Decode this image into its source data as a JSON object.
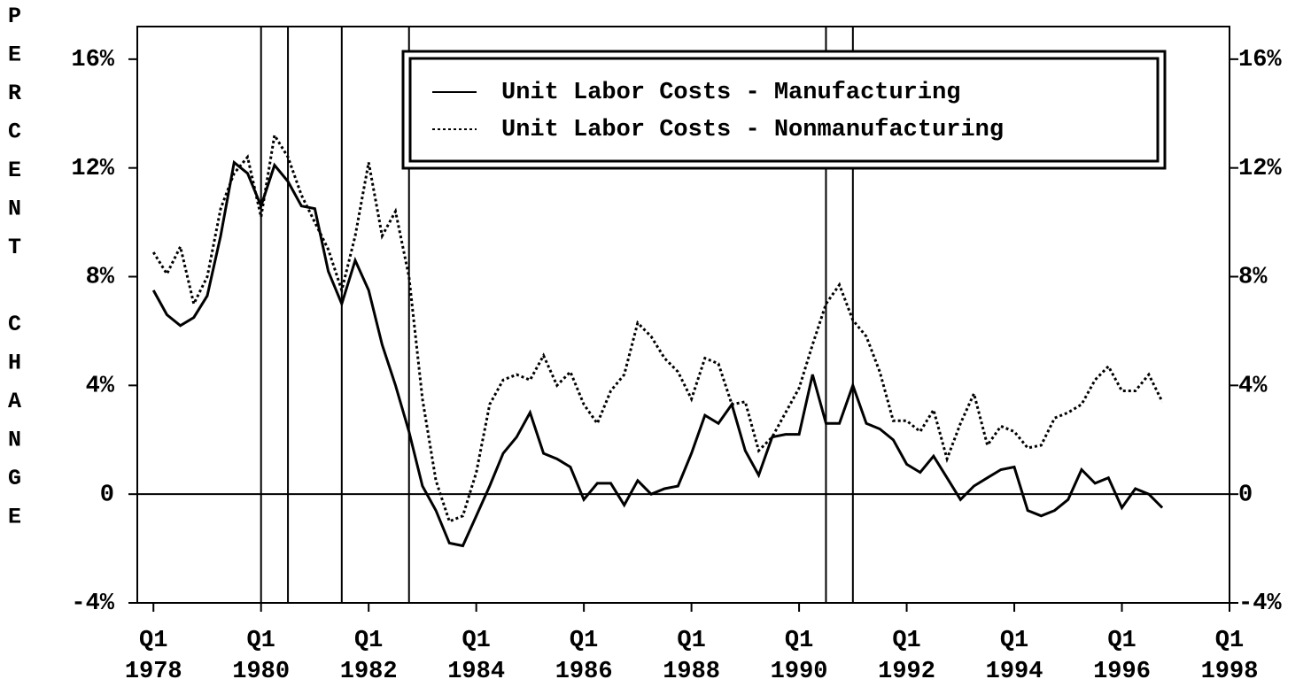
{
  "chart_data": {
    "type": "line",
    "y_label": "PERCENT CHANGE",
    "x": [
      1978,
      1978.25,
      1978.5,
      1978.75,
      1979,
      1979.25,
      1979.5,
      1979.75,
      1980,
      1980.25,
      1980.5,
      1980.75,
      1981,
      1981.25,
      1981.5,
      1981.75,
      1982,
      1982.25,
      1982.5,
      1982.75,
      1983,
      1983.25,
      1983.5,
      1983.75,
      1984,
      1984.25,
      1984.5,
      1984.75,
      1985,
      1985.25,
      1985.5,
      1985.75,
      1986,
      1986.25,
      1986.5,
      1986.75,
      1987,
      1987.25,
      1987.5,
      1987.75,
      1988,
      1988.25,
      1988.5,
      1988.75,
      1989,
      1989.25,
      1989.5,
      1989.75,
      1990,
      1990.25,
      1990.5,
      1990.75,
      1991,
      1991.25,
      1991.5,
      1991.75,
      1992,
      1992.25,
      1992.5,
      1992.75,
      1993,
      1993.25,
      1993.5,
      1993.75,
      1994,
      1994.25,
      1994.5,
      1994.75,
      1995,
      1995.25,
      1995.5,
      1995.75,
      1996,
      1996.25,
      1996.5,
      1996.75
    ],
    "series": [
      {
        "name": "Unit Labor Costs - Manufacturing",
        "color": "#000000",
        "style": "solid",
        "values": [
          7.5,
          6.6,
          6.2,
          6.5,
          7.3,
          9.5,
          12.2,
          11.8,
          10.6,
          12.1,
          11.5,
          10.6,
          10.5,
          8.2,
          7.0,
          8.6,
          7.5,
          5.5,
          4.0,
          2.3,
          0.3,
          -0.6,
          -1.8,
          -1.9,
          -0.8,
          0.3,
          1.5,
          2.1,
          3.0,
          1.5,
          1.3,
          1.0,
          -0.2,
          0.4,
          0.4,
          -0.4,
          0.5,
          0.0,
          0.2,
          0.3,
          1.5,
          2.9,
          2.6,
          3.3,
          1.6,
          0.7,
          2.1,
          2.2,
          2.2,
          4.4,
          2.6,
          2.6,
          4.0,
          2.6,
          2.4,
          2.0,
          1.1,
          0.8,
          1.4,
          0.6,
          -0.2,
          0.3,
          0.6,
          0.9,
          1.0,
          -0.6,
          -0.8,
          -0.6,
          -0.2,
          0.9,
          0.4,
          0.6,
          -0.5,
          0.2,
          0.0,
          -0.5
        ]
      },
      {
        "name": "Unit Labor Costs - Nonmanufacturing",
        "color": "#000000",
        "style": "dotted",
        "values": [
          8.9,
          8.1,
          9.1,
          7.0,
          8.0,
          10.5,
          11.8,
          12.4,
          10.2,
          13.2,
          12.4,
          11.0,
          10.0,
          9.0,
          7.5,
          9.5,
          12.2,
          9.5,
          10.4,
          8.0,
          3.5,
          0.5,
          -1.0,
          -0.8,
          0.8,
          3.3,
          4.2,
          4.4,
          4.2,
          5.1,
          4.0,
          4.5,
          3.3,
          2.6,
          3.8,
          4.4,
          6.3,
          5.8,
          5.0,
          4.5,
          3.5,
          5.0,
          4.8,
          3.3,
          3.4,
          1.6,
          2.1,
          3.0,
          3.9,
          5.5,
          7.0,
          7.7,
          6.4,
          5.8,
          4.5,
          2.7,
          2.7,
          2.3,
          3.1,
          1.3,
          2.6,
          3.7,
          1.8,
          2.5,
          2.3,
          1.7,
          1.8,
          2.8,
          3.0,
          3.3,
          4.2,
          4.7,
          3.8,
          3.8,
          4.4,
          3.4
        ]
      }
    ],
    "recession_lines": [
      1980,
      1980.5,
      1981.5,
      1982.75,
      1990.5,
      1991
    ],
    "xlim": [
      1977.7,
      1998
    ],
    "xticks": [
      {
        "value": 1978,
        "label": [
          "Q1",
          "1978"
        ]
      },
      {
        "value": 1980,
        "label": [
          "Q1",
          "1980"
        ]
      },
      {
        "value": 1982,
        "label": [
          "Q1",
          "1982"
        ]
      },
      {
        "value": 1984,
        "label": [
          "Q1",
          "1984"
        ]
      },
      {
        "value": 1986,
        "label": [
          "Q1",
          "1986"
        ]
      },
      {
        "value": 1988,
        "label": [
          "Q1",
          "1988"
        ]
      },
      {
        "value": 1990,
        "label": [
          "Q1",
          "1990"
        ]
      },
      {
        "value": 1992,
        "label": [
          "Q1",
          "1992"
        ]
      },
      {
        "value": 1994,
        "label": [
          "Q1",
          "1994"
        ]
      },
      {
        "value": 1996,
        "label": [
          "Q1",
          "1996"
        ]
      },
      {
        "value": 1998,
        "label": [
          "Q1",
          "1998"
        ]
      }
    ],
    "ylim": [
      -4,
      17.2
    ],
    "yticks": [
      {
        "value": -4,
        "label": "-4%"
      },
      0,
      {
        "value": 4,
        "label": "4%"
      },
      {
        "value": 8,
        "label": "8%"
      },
      {
        "value": 12,
        "label": "12%"
      },
      {
        "value": 16,
        "label": "16%"
      }
    ],
    "y2lim": [
      -4,
      17.2
    ],
    "y2ticks": [
      {
        "value": -4,
        "label": "-4%"
      },
      0,
      {
        "value": 4,
        "label": "4%"
      },
      {
        "value": 8,
        "label": "8%"
      },
      {
        "value": 12,
        "label": "12%"
      },
      {
        "value": 16,
        "label": "16%"
      }
    ],
    "legend": "top"
  }
}
